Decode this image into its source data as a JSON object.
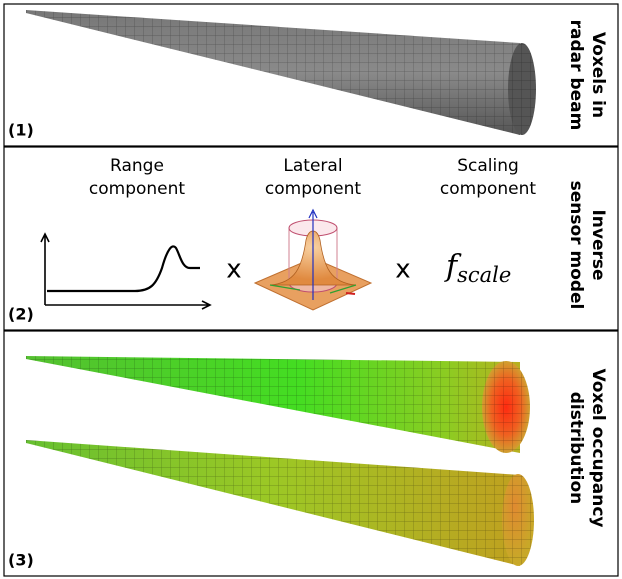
{
  "panels": [
    {
      "label": "(1)",
      "side_title": [
        "Voxels in",
        "radar beam"
      ]
    },
    {
      "label": "(2)",
      "side_title": [
        "Inverse",
        "sensor model"
      ],
      "components": [
        {
          "title": [
            "Range",
            "component"
          ]
        },
        {
          "title": [
            "Lateral",
            "component"
          ]
        },
        {
          "title": [
            "Scaling",
            "component"
          ]
        }
      ],
      "operators": [
        "x",
        "x"
      ],
      "scaling_symbol": {
        "base": "f",
        "subscript": "scale"
      }
    },
    {
      "label": "(3)",
      "side_title": [
        "Voxel occupancy",
        "distribution"
      ]
    }
  ]
}
